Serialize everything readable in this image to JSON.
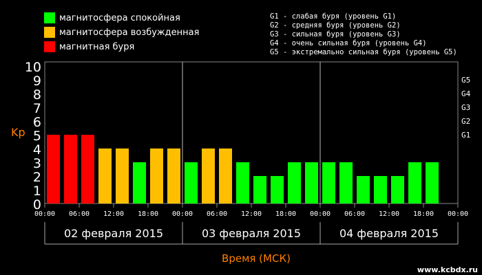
{
  "chart_data": {
    "type": "bar",
    "ylabel": "Kp",
    "xlabel": "Время (МСК)",
    "ylim": [
      0,
      10
    ],
    "yticks": [
      0,
      1,
      2,
      3,
      4,
      5,
      6,
      7,
      8,
      9,
      10
    ],
    "g_levels": [
      {
        "label": "G1",
        "kp": 5
      },
      {
        "label": "G2",
        "kp": 6
      },
      {
        "label": "G3",
        "kp": 7
      },
      {
        "label": "G4",
        "kp": 8
      },
      {
        "label": "G5",
        "kp": 9
      }
    ],
    "time_ticks": [
      "00:00",
      "06:00",
      "12:00",
      "18:00",
      "00:00",
      "06:00",
      "12:00",
      "18:00",
      "00:00",
      "06:00",
      "12:00",
      "18:00",
      "00:00"
    ],
    "days": [
      "02 февраля 2015",
      "03 февраля 2015",
      "04 февраля 2015"
    ],
    "values": [
      5,
      5,
      5,
      4,
      4,
      3,
      4,
      4,
      3,
      4,
      4,
      3,
      2,
      2,
      3,
      3,
      3,
      3,
      2,
      2,
      2,
      3,
      3
    ],
    "colors": {
      "calm": "#00ff00",
      "excited": "#ffbf00",
      "storm": "#ff0000",
      "axis_label": "#ff8000"
    }
  },
  "legend": [
    {
      "label": "магнитосфера спокойная",
      "color": "#00ff00"
    },
    {
      "label": "магнитосфера возбужденная",
      "color": "#ffbf00"
    },
    {
      "label": "магнитная буря",
      "color": "#ff0000"
    }
  ],
  "g_descriptions": [
    "G1 - слабая буря (уровень G1)",
    "G2 - средняя буря (уровень G2)",
    "G3 - сильная буря (уровень G3)",
    "G4 - очень сильная буря (уровень G4)",
    "G5 - экстремально сильная буря (уровень G5)"
  ],
  "watermark": "www.kcbdx.ru"
}
